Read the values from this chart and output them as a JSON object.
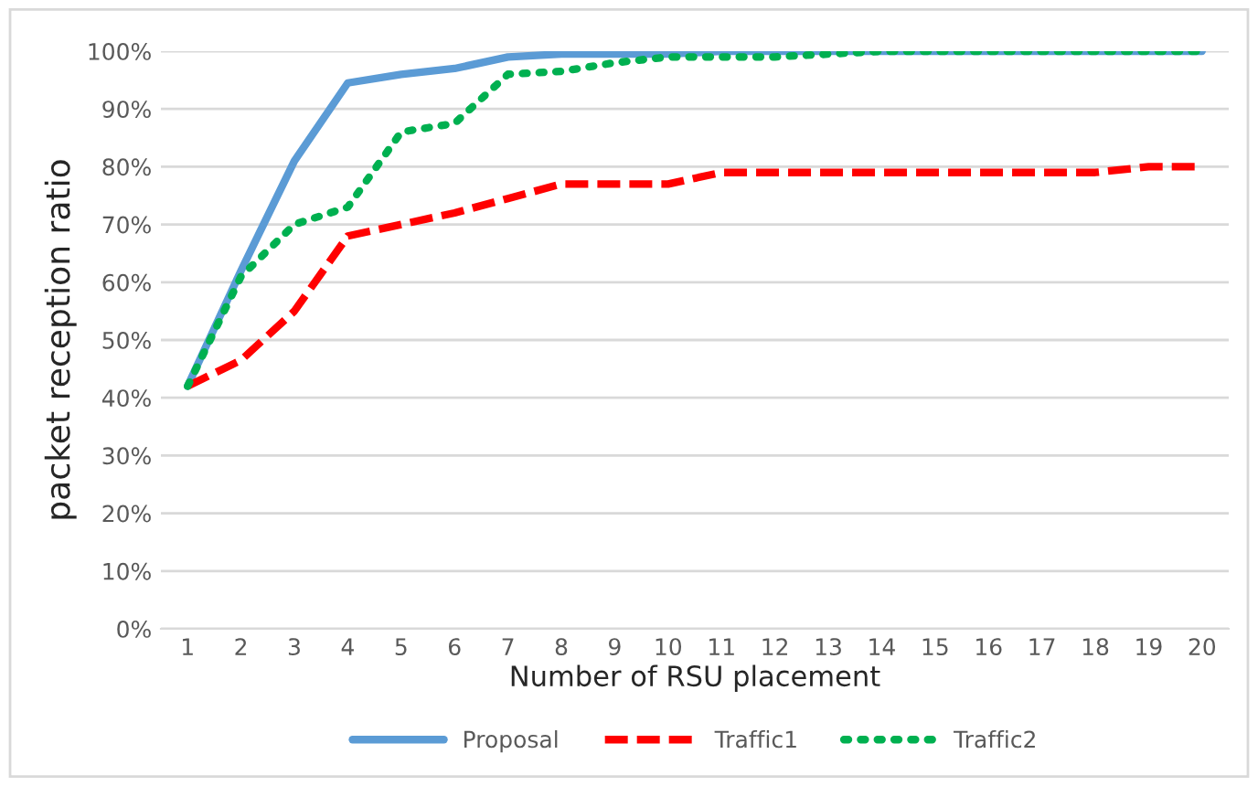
{
  "chart_data": {
    "type": "line",
    "xlabel": "Number of RSU placement",
    "ylabel": "packet reception ratio",
    "categories": [
      "1",
      "2",
      "3",
      "4",
      "5",
      "6",
      "7",
      "8",
      "9",
      "10",
      "11",
      "12",
      "13",
      "14",
      "15",
      "16",
      "17",
      "18",
      "19",
      "20"
    ],
    "series": [
      {
        "name": "Proposal",
        "color": "#5b9bd5",
        "line_style": "solid",
        "values": [
          42,
          62,
          81,
          94.5,
          96,
          97,
          99,
          99.5,
          99.5,
          99.5,
          100,
          100,
          100,
          100,
          100,
          100,
          100,
          100,
          100,
          100
        ]
      },
      {
        "name": "Traffic1",
        "color": "#ff0000",
        "line_style": "dashed",
        "values": [
          42,
          46.5,
          55,
          68,
          70,
          72,
          74.5,
          77,
          77,
          77,
          79,
          79,
          79,
          79,
          79,
          79,
          79,
          79,
          80,
          80
        ]
      },
      {
        "name": "Traffic2",
        "color": "#00b050",
        "line_style": "dotted",
        "values": [
          42,
          61,
          70,
          73,
          86,
          87.5,
          96,
          96.5,
          98,
          99,
          99,
          99,
          99.5,
          100,
          100,
          100,
          100,
          100,
          100,
          100
        ]
      }
    ],
    "ylim": [
      0,
      100
    ],
    "yticks": [
      {
        "value": 0,
        "label": "0%"
      },
      {
        "value": 10,
        "label": "10%"
      },
      {
        "value": 20,
        "label": "20%"
      },
      {
        "value": 30,
        "label": "30%"
      },
      {
        "value": 40,
        "label": "40%"
      },
      {
        "value": 50,
        "label": "50%"
      },
      {
        "value": 60,
        "label": "60%"
      },
      {
        "value": 70,
        "label": "70%"
      },
      {
        "value": 80,
        "label": "80%"
      },
      {
        "value": 90,
        "label": "90%"
      },
      {
        "value": 100,
        "label": "100%"
      }
    ],
    "grid": "y",
    "legend": "bottom"
  }
}
